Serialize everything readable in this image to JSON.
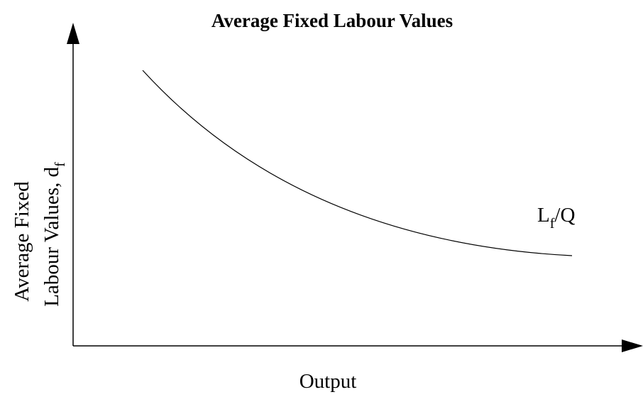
{
  "title": "Average Fixed Labour Values",
  "y_axis_label": {
    "line1": "Average Fixed",
    "line2": "Labour Values, d",
    "line2_subscript": "f"
  },
  "x_axis_label": "Output",
  "curve_label": {
    "main": "L",
    "subscript": "f",
    "suffix": "/Q"
  }
}
